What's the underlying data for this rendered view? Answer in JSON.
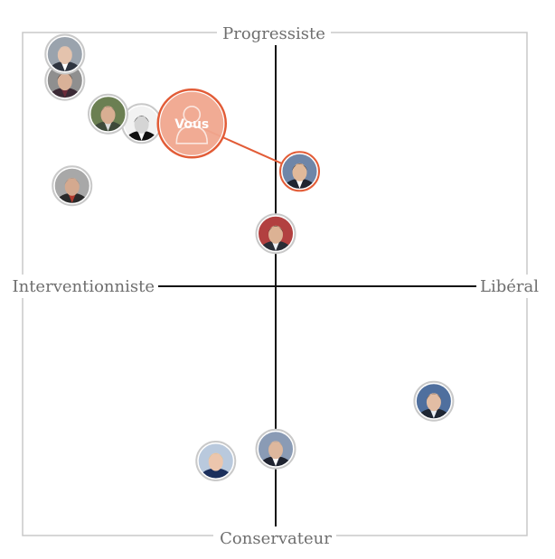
{
  "chart_data": {
    "type": "scatter",
    "axes": {
      "top": "Progressiste",
      "bottom": "Conservateur",
      "left": "Interventionniste",
      "right": "Libéral"
    },
    "xlim": [
      -1,
      1
    ],
    "ylim": [
      -1,
      1
    ],
    "grid": false,
    "you": {
      "label": "Vous",
      "x": -0.35,
      "y": 0.68,
      "linked_to": 0
    },
    "candidates": [
      {
        "x": 0.1,
        "y": 0.48,
        "photo": "man-dark-suit-blue-background"
      },
      {
        "x": 0.0,
        "y": 0.22,
        "photo": "man-dark-suit-red-flag-background"
      },
      {
        "x": -0.88,
        "y": 0.97,
        "photo": "bald-man-glasses"
      },
      {
        "x": -0.88,
        "y": 0.86,
        "photo": "dark-haired-woman"
      },
      {
        "x": -0.7,
        "y": 0.72,
        "photo": "man-glasses-green-background"
      },
      {
        "x": -0.56,
        "y": 0.68,
        "photo": "young-man-black-white-portrait"
      },
      {
        "x": -0.85,
        "y": 0.42,
        "photo": "grey-haired-man-scarf"
      },
      {
        "x": 0.66,
        "y": -0.48,
        "photo": "man-suit-blue-background"
      },
      {
        "x": 0.0,
        "y": -0.68,
        "photo": "man-podium-flag-background"
      },
      {
        "x": -0.25,
        "y": -0.73,
        "photo": "blonde-woman-blue-background"
      }
    ],
    "colors": {
      "frame": "#c8c8c8",
      "axis": "#111111",
      "accent": "#e25c37",
      "you_fill": "#f1a78f",
      "ring_neutral": "#c9c9c9"
    }
  }
}
